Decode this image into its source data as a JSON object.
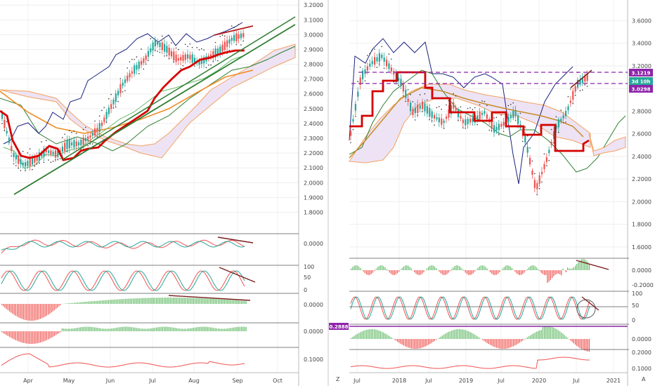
{
  "left_chart": {
    "price_ticks": [
      "3.2000",
      "3.1000",
      "3.0000",
      "2.9000",
      "2.8000",
      "2.7000",
      "2.6000",
      "2.5000",
      "2.4000",
      "2.3000",
      "2.2000",
      "2.1000",
      "2.0000",
      "1.9000",
      "1.8000"
    ],
    "price_range": [
      1.75,
      3.22
    ],
    "x_labels": [
      "Apr",
      "May",
      "Jun",
      "Jul",
      "Aug",
      "Sep",
      "Oct"
    ],
    "osc1_ticks": [
      "0.0000"
    ],
    "osc2_ticks": [
      "100",
      "50",
      "0"
    ],
    "osc3_ticks": [
      "0.0000"
    ],
    "osc4_ticks": [
      "0.0000"
    ],
    "osc5_ticks": [
      "0.1000"
    ]
  },
  "right_chart": {
    "price_ticks": [
      "3.6000",
      "3.4000",
      "3.2000",
      "3.0000",
      "2.8000",
      "2.6000",
      "2.4000",
      "2.2000",
      "2.0000",
      "1.8000",
      "1.6000"
    ],
    "price_range": [
      1.55,
      3.72
    ],
    "x_labels": [
      "Jul",
      "2018",
      "Jul",
      "2019",
      "Jul",
      "2020",
      "Jul",
      "2021"
    ],
    "osc1_ticks": [
      "0.0000",
      "-0.2000"
    ],
    "osc2_ticks": [
      "100",
      "50",
      "0"
    ],
    "osc3_ticks": [
      "0.0000"
    ],
    "osc4_ticks": [
      "0.2000",
      "0.1000"
    ],
    "badges": {
      "upper": "3.1219",
      "middle": "3d 10h",
      "lower": "3.0298",
      "osc_left": "0.2888"
    },
    "corner_left": "Z",
    "corner_right": "A"
  },
  "colors": {
    "up": "#26a69a",
    "down": "#ef5350",
    "ma": "#d50000",
    "trend": "#2e7d32",
    "cloud": "#e1bee7",
    "band": "#1a237e",
    "purple": "#9c27b0"
  }
}
